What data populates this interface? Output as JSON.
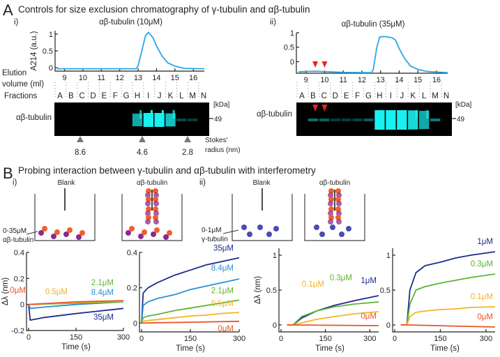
{
  "panelA": {
    "letter": "A",
    "title": "Controls for size exclusion chromatography of γ-tubulin and αβ-tubulin",
    "elution_label_1": "Elution",
    "elution_label_2": "volume (ml)",
    "fractions_label": "Fractions",
    "kda_label": "[kDa]",
    "marker_label": "49",
    "gel_row_label": "αβ-tubulin",
    "stokes_label_1": "Stokes'",
    "stokes_label_2": "radius (nm)",
    "stokes_values": [
      "8.6",
      "4.6",
      "2.8"
    ],
    "fractions": [
      "A",
      "B",
      "C",
      "D",
      "E",
      "F",
      "G",
      "H",
      "I",
      "J",
      "K",
      "L",
      "M",
      "N"
    ],
    "sub_i": "i)",
    "sub_ii": "ii)"
  },
  "panelB": {
    "letter": "B",
    "title": "Probing interaction between γ-tubulin and αβ-tubulin with interferometry",
    "sub_i": "i)",
    "sub_ii": "ii)",
    "blank_label": "Blank",
    "ab_label": "αβ-tubulin",
    "conc_i_1": "0-35μM",
    "conc_i_2": "αβ-tubulin",
    "conc_ii_1": "0-1μM",
    "conc_ii_2": "γ-tubulin"
  },
  "colors": {
    "elution": "#2aa6e2",
    "gel_band": "#19f0f0",
    "red_marker": "#e8241c",
    "alpha_tubulin": "#f0602a",
    "beta_tubulin": "#8a2a8c",
    "gamma_tubulin": "#4a4ab8"
  },
  "chart_data": [
    {
      "id": "elution-10uM",
      "type": "line",
      "title": "αβ-tubulin (10μM)",
      "ylabel": "A214 (a.u.)",
      "xticks": [
        9,
        10,
        11,
        12,
        13,
        14,
        15,
        16
      ],
      "yticks": [
        0,
        0.5,
        1
      ],
      "xlim": [
        8.6,
        16.6
      ],
      "ylim": [
        -0.1,
        1.1
      ],
      "series": [
        {
          "color": "#2aa6e2",
          "x": [
            8.6,
            10,
            12,
            12.9,
            13.0,
            13.2,
            13.4,
            13.55,
            13.8,
            14.0,
            14.3,
            14.6,
            15.0,
            15.5,
            16.6
          ],
          "y": [
            -0.03,
            -0.03,
            -0.03,
            -0.03,
            0.05,
            0.5,
            0.95,
            1.05,
            0.9,
            0.65,
            0.35,
            0.15,
            0.05,
            -0.02,
            -0.03
          ]
        }
      ],
      "gel_bands": {
        "H": 0.7,
        "I": 1,
        "J": 1,
        "K": 0.8,
        "L": 0.3,
        "M": 0.1
      }
    },
    {
      "id": "elution-35uM",
      "type": "line",
      "title": "αβ-tubulin (35μM)",
      "xticks": [
        9,
        10,
        11,
        12,
        13,
        14,
        15,
        16
      ],
      "yticks": [
        0,
        0.5,
        1
      ],
      "xlim": [
        8.6,
        16.6
      ],
      "ylim": [
        -0.4,
        1.0
      ],
      "series": [
        {
          "color": "#2aa6e2",
          "x": [
            8.6,
            9.5,
            11,
            12.5,
            12.6,
            12.8,
            12.95,
            13.2,
            13.6,
            13.8,
            14.0,
            14.3,
            14.6,
            15.0,
            15.5,
            16.6
          ],
          "y": [
            -0.35,
            -0.33,
            -0.37,
            -0.38,
            -0.3,
            0.5,
            0.85,
            0.87,
            0.83,
            0.75,
            0.45,
            0.1,
            -0.15,
            -0.27,
            -0.34,
            -0.38
          ]
        }
      ],
      "red_markers_x": [
        9.5,
        10.0
      ],
      "gel_bands": {
        "B": 0.45,
        "C": 0.4,
        "D": 0.12,
        "E": 0.08,
        "F": 0.28,
        "G": 0.38,
        "H": 1,
        "I": 1,
        "J": 1,
        "K": 0.9,
        "L": 0.7,
        "M": 0.5
      }
    },
    {
      "id": "bli-ab-blank",
      "type": "line",
      "xlabel": "Time (s)",
      "ylabel": "Δλ (nm)",
      "xticks": [
        0,
        150,
        300
      ],
      "yticks": [
        -0.2,
        0,
        0.2,
        0.4
      ],
      "xlim": [
        0,
        300
      ],
      "ylim": [
        -0.2,
        0.4
      ],
      "series": [
        {
          "name": "35μM",
          "color": "#1d2a8c",
          "x": [
            0,
            5,
            50,
            150,
            300
          ],
          "y": [
            0,
            -0.12,
            -0.1,
            -0.07,
            -0.03
          ]
        },
        {
          "name": "8.4μM",
          "color": "#2a8fd8",
          "x": [
            0,
            5,
            50,
            150,
            300
          ],
          "y": [
            0,
            -0.03,
            -0.02,
            0,
            0.02
          ]
        },
        {
          "name": "2.1μM",
          "color": "#5cb531",
          "x": [
            0,
            150,
            300
          ],
          "y": [
            0,
            0.01,
            0.02
          ]
        },
        {
          "name": "0.5μM",
          "color": "#f5b324",
          "x": [
            0,
            150,
            300
          ],
          "y": [
            0,
            0.015,
            0.025
          ]
        },
        {
          "name": "0μM",
          "color": "#e8542a",
          "x": [
            0,
            150,
            300
          ],
          "y": [
            0,
            0.02,
            0.03
          ]
        }
      ]
    },
    {
      "id": "bli-ab-ab",
      "type": "line",
      "xlabel": "Time (s)",
      "xticks": [
        0,
        150,
        300
      ],
      "yticks": [
        0,
        0.2,
        0.4
      ],
      "xlim": [
        0,
        300
      ],
      "ylim": [
        -0.05,
        0.4
      ],
      "series": [
        {
          "name": "35μM",
          "color": "#1d2a8c",
          "x": [
            0,
            5,
            20,
            50,
            100,
            150,
            200,
            250,
            300
          ],
          "y": [
            0,
            0.17,
            0.2,
            0.23,
            0.27,
            0.3,
            0.33,
            0.35,
            0.37
          ]
        },
        {
          "name": "8.4μM",
          "color": "#2a8fd8",
          "x": [
            0,
            5,
            20,
            50,
            100,
            150,
            200,
            250,
            300
          ],
          "y": [
            0,
            0.1,
            0.12,
            0.14,
            0.16,
            0.19,
            0.21,
            0.23,
            0.25
          ]
        },
        {
          "name": "2.1μM",
          "color": "#5cb531",
          "x": [
            0,
            5,
            20,
            50,
            100,
            150,
            200,
            250,
            300
          ],
          "y": [
            0,
            0.03,
            0.04,
            0.05,
            0.07,
            0.085,
            0.1,
            0.115,
            0.13
          ]
        },
        {
          "name": "0.5μM",
          "color": "#f5b324",
          "x": [
            0,
            5,
            20,
            50,
            100,
            150,
            200,
            250,
            300
          ],
          "y": [
            0,
            0.01,
            0.015,
            0.02,
            0.03,
            0.04,
            0.045,
            0.055,
            0.06
          ]
        },
        {
          "name": "0μM",
          "color": "#e8542a",
          "x": [
            0,
            150,
            300
          ],
          "y": [
            0,
            0.005,
            0.01
          ]
        }
      ]
    },
    {
      "id": "bli-g-blank",
      "type": "line",
      "xlabel": "Time (s)",
      "ylabel": "Δλ (nm)",
      "xticks": [
        0,
        150,
        300
      ],
      "yticks": [
        0,
        0.5,
        1
      ],
      "xlim": [
        0,
        330
      ],
      "ylim": [
        -0.1,
        1.1
      ],
      "series": [
        {
          "name": "1μM",
          "color": "#1d2a8c",
          "x": [
            20,
            40,
            70,
            120,
            180,
            250,
            330
          ],
          "y": [
            0,
            0,
            0.1,
            0.2,
            0.28,
            0.35,
            0.42
          ]
        },
        {
          "name": "0.3μM",
          "color": "#5cb531",
          "x": [
            20,
            40,
            70,
            120,
            180,
            250,
            330
          ],
          "y": [
            0,
            0,
            0.12,
            0.2,
            0.26,
            0.3,
            0.33
          ]
        },
        {
          "name": "0.1μM",
          "color": "#f5b324",
          "x": [
            20,
            40,
            70,
            120,
            180,
            250,
            330
          ],
          "y": [
            0,
            0,
            0.03,
            0.08,
            0.12,
            0.16,
            0.19
          ]
        },
        {
          "name": "0μM",
          "color": "#e8542a",
          "x": [
            20,
            330
          ],
          "y": [
            0,
            -0.01
          ]
        }
      ]
    },
    {
      "id": "bli-g-ab",
      "type": "line",
      "xlabel": "Time (s)",
      "xticks": [
        0,
        150,
        300
      ],
      "yticks": [
        0,
        0.5,
        1
      ],
      "xlim": [
        0,
        330
      ],
      "ylim": [
        -0.1,
        1.1
      ],
      "series": [
        {
          "name": "1μM",
          "color": "#1d2a8c",
          "x": [
            20,
            40,
            50,
            70,
            100,
            150,
            200,
            250,
            330
          ],
          "y": [
            0,
            0,
            0.5,
            0.75,
            0.85,
            0.9,
            0.96,
            1.0,
            1.05
          ]
        },
        {
          "name": "0.3μM",
          "color": "#5cb531",
          "x": [
            20,
            40,
            50,
            70,
            100,
            150,
            200,
            250,
            330
          ],
          "y": [
            0,
            0,
            0.3,
            0.5,
            0.55,
            0.6,
            0.64,
            0.68,
            0.73
          ]
        },
        {
          "name": "0.1μM",
          "color": "#f5b324",
          "x": [
            20,
            40,
            50,
            70,
            100,
            150,
            200,
            250,
            330
          ],
          "y": [
            0,
            0,
            0.12,
            0.18,
            0.2,
            0.22,
            0.23,
            0.25,
            0.26
          ]
        },
        {
          "name": "0μM",
          "color": "#e8542a",
          "x": [
            20,
            40,
            330
          ],
          "y": [
            0,
            0,
            -0.03
          ]
        }
      ]
    }
  ]
}
